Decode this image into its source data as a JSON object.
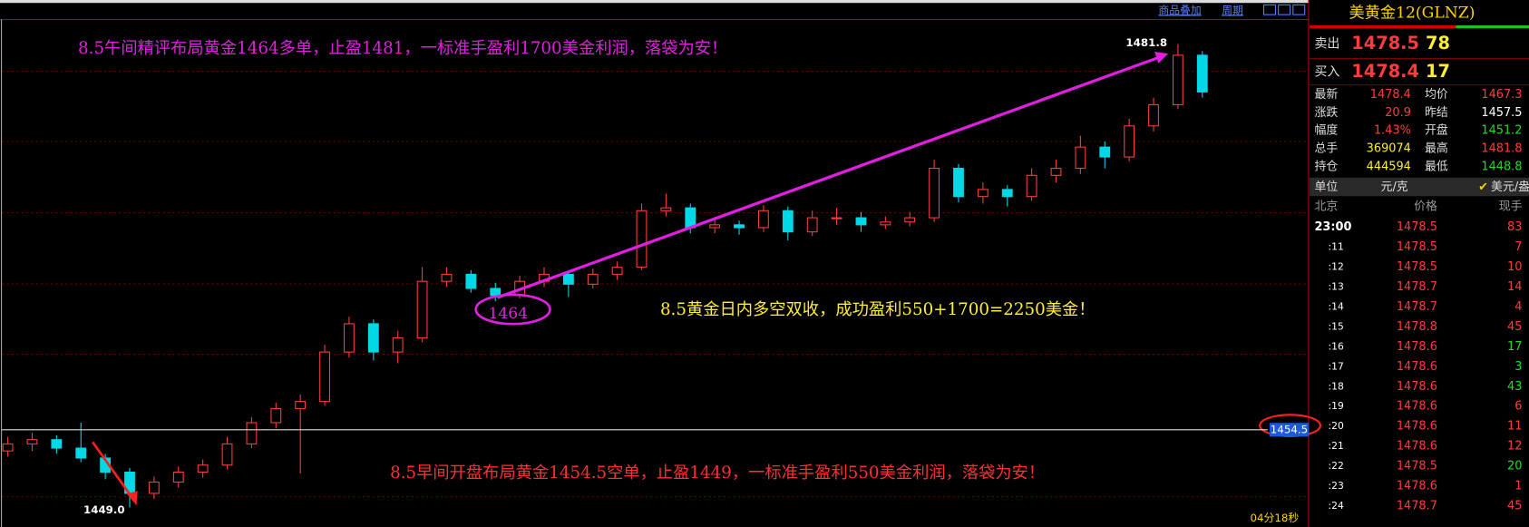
{
  "toolbar": {
    "overlay": "商品叠加",
    "period": "周期"
  },
  "chart": {
    "type": "candlestick",
    "candles": [
      [
        1453.0,
        1454.0,
        1452.6,
        1453.5
      ],
      [
        1453.5,
        1454.3,
        1453.0,
        1453.8
      ],
      [
        1453.8,
        1454.1,
        1452.8,
        1453.2
      ],
      [
        1453.2,
        1455.0,
        1452.2,
        1452.5
      ],
      [
        1452.5,
        1452.8,
        1451.0,
        1451.5
      ],
      [
        1451.5,
        1451.8,
        1449.0,
        1450.0
      ],
      [
        1450.0,
        1451.2,
        1449.6,
        1450.8
      ],
      [
        1450.8,
        1451.9,
        1450.4,
        1451.5
      ],
      [
        1451.5,
        1452.4,
        1451.1,
        1452.0
      ],
      [
        1452.0,
        1454.0,
        1451.7,
        1453.5
      ],
      [
        1453.5,
        1455.4,
        1453.2,
        1455.0
      ],
      [
        1455.0,
        1456.4,
        1454.6,
        1456.0
      ],
      [
        1456.0,
        1457.0,
        1451.4,
        1456.5
      ],
      [
        1456.5,
        1460.5,
        1456.2,
        1460.0
      ],
      [
        1460.0,
        1462.5,
        1459.6,
        1462.0
      ],
      [
        1462.0,
        1462.3,
        1459.4,
        1460.0
      ],
      [
        1460.0,
        1461.5,
        1459.2,
        1461.0
      ],
      [
        1461.0,
        1466.0,
        1460.7,
        1465.0
      ],
      [
        1465.0,
        1466.0,
        1464.6,
        1465.5
      ],
      [
        1465.5,
        1465.8,
        1464.2,
        1464.5
      ],
      [
        1464.5,
        1464.9,
        1463.6,
        1464.0
      ],
      [
        1464.0,
        1465.4,
        1463.8,
        1465.0
      ],
      [
        1465.0,
        1466.0,
        1464.6,
        1465.5
      ],
      [
        1465.5,
        1465.8,
        1463.9,
        1464.8
      ],
      [
        1464.8,
        1465.9,
        1464.5,
        1465.5
      ],
      [
        1465.5,
        1466.4,
        1465.1,
        1466.0
      ],
      [
        1466.0,
        1470.5,
        1465.8,
        1470.0
      ],
      [
        1470.0,
        1471.2,
        1469.6,
        1470.2
      ],
      [
        1470.2,
        1470.5,
        1468.4,
        1468.8
      ],
      [
        1468.8,
        1469.5,
        1468.4,
        1469.0
      ],
      [
        1469.0,
        1469.3,
        1468.3,
        1468.8
      ],
      [
        1468.8,
        1470.4,
        1468.5,
        1470.0
      ],
      [
        1470.0,
        1470.3,
        1467.9,
        1468.5
      ],
      [
        1468.5,
        1470.0,
        1468.2,
        1469.5
      ],
      [
        1469.5,
        1470.2,
        1469.0,
        1469.5
      ],
      [
        1469.5,
        1469.9,
        1468.5,
        1469.0
      ],
      [
        1469.0,
        1469.6,
        1468.7,
        1469.2
      ],
      [
        1469.2,
        1469.9,
        1468.9,
        1469.5
      ],
      [
        1469.5,
        1473.6,
        1469.2,
        1473.0
      ],
      [
        1473.0,
        1473.3,
        1470.6,
        1471.0
      ],
      [
        1471.0,
        1472.0,
        1470.5,
        1471.5
      ],
      [
        1471.5,
        1471.8,
        1470.3,
        1471.0
      ],
      [
        1471.0,
        1473.0,
        1470.7,
        1472.5
      ],
      [
        1472.5,
        1473.6,
        1472.0,
        1473.0
      ],
      [
        1473.0,
        1475.3,
        1472.6,
        1474.5
      ],
      [
        1474.5,
        1474.9,
        1473.0,
        1473.8
      ],
      [
        1473.8,
        1476.5,
        1473.5,
        1476.0
      ],
      [
        1476.0,
        1478.0,
        1475.6,
        1477.5
      ],
      [
        1477.5,
        1481.8,
        1477.2,
        1481.0
      ],
      [
        1481.0,
        1481.3,
        1478.0,
        1478.4
      ]
    ],
    "up_color": "#ff3c3c",
    "down_color": "#00d8e8",
    "hline": {
      "value": 1454.5
    },
    "markers": [
      {
        "label": "1481.8",
        "value": 1481.8
      },
      {
        "label": "1449.0",
        "value": 1449.0
      }
    ],
    "annotations": [
      "8.5午间精评布局黄金1464多单，止盈1481，一标准手盈利1700美金利润，落袋为安！",
      "8.5黄金日内多空双收，成功盈利550+1700=2250美金！",
      "8.5早间开盘布局黄金1454.5空单，止盈1449，一标准手盈利550美金利润，落袋为安！"
    ],
    "circle_label": "1464",
    "timer": "04分18秒"
  },
  "quote": {
    "title": "美黄金12(GLNZ)",
    "sell": {
      "label": "卖出",
      "price": "1478.5",
      "volume": "78"
    },
    "buy": {
      "label": "买入",
      "price": "1478.4",
      "volume": "17"
    },
    "stats": [
      [
        "最新",
        "1478.4",
        "均价",
        "1467.3"
      ],
      [
        "涨跌",
        "20.9",
        "昨结",
        "1457.5"
      ],
      [
        "幅度",
        "1.43%",
        "开盘",
        "1451.2"
      ],
      [
        "总手",
        "369074",
        "最高",
        "1481.8"
      ],
      [
        "持仓",
        "444594",
        "最低",
        "1448.8"
      ]
    ],
    "units": {
      "label": "单位",
      "primary": "元/克",
      "secondary": "美元/盎司"
    },
    "ticks_header": [
      "北京",
      "价格",
      "现手"
    ],
    "ticks": [
      {
        "time": "23:00",
        "price": "1478.5",
        "volume": "83",
        "color": "#ff3c3c"
      },
      {
        "time": ":11",
        "price": "1478.5",
        "volume": "7",
        "color": "#ff3c3c"
      },
      {
        "time": ":12",
        "price": "1478.5",
        "volume": "10",
        "color": "#ff3c3c"
      },
      {
        "time": ":13",
        "price": "1478.7",
        "volume": "14",
        "color": "#ff3c3c"
      },
      {
        "time": ":14",
        "price": "1478.7",
        "volume": "4",
        "color": "#ff3c3c"
      },
      {
        "time": ":15",
        "price": "1478.8",
        "volume": "45",
        "color": "#ff3c3c"
      },
      {
        "time": ":16",
        "price": "1478.6",
        "volume": "17",
        "color": "#22dd22"
      },
      {
        "time": ":17",
        "price": "1478.6",
        "volume": "3",
        "color": "#22dd22"
      },
      {
        "time": ":18",
        "price": "1478.6",
        "volume": "43",
        "color": "#22dd22"
      },
      {
        "time": ":19",
        "price": "1478.6",
        "volume": "6",
        "color": "#ff3c3c"
      },
      {
        "time": ":20",
        "price": "1478.6",
        "volume": "11",
        "color": "#ff3c3c"
      },
      {
        "time": ":21",
        "price": "1478.6",
        "volume": "12",
        "color": "#ff3c3c"
      },
      {
        "time": ":22",
        "price": "1478.5",
        "volume": "20",
        "color": "#22dd22"
      },
      {
        "time": ":23",
        "price": "1478.6",
        "volume": "1",
        "color": "#ff3c3c"
      },
      {
        "time": ":24",
        "price": "1478.7",
        "volume": "45",
        "color": "#ff3c3c"
      }
    ]
  }
}
